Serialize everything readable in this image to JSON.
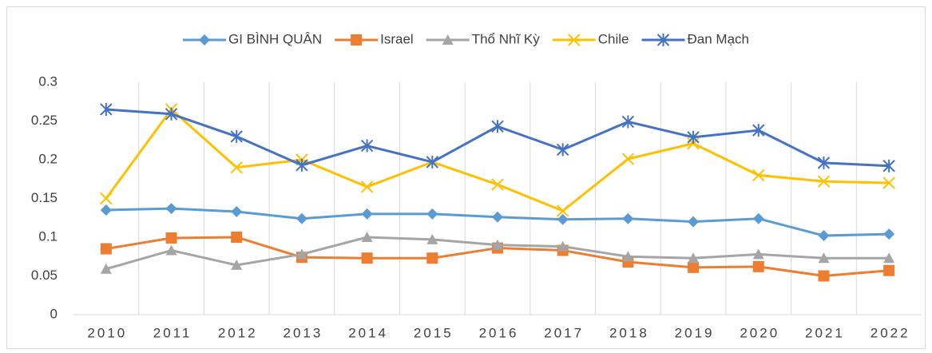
{
  "chart_data": {
    "type": "line",
    "categories": [
      "2010",
      "2011",
      "2012",
      "2013",
      "2014",
      "2015",
      "2016",
      "2017",
      "2018",
      "2019",
      "2020",
      "2021",
      "2022"
    ],
    "series": [
      {
        "name": "GI BÌNH QUÂN",
        "color": "#5B9BD5",
        "marker": "diamond",
        "values": [
          0.135,
          0.137,
          0.133,
          0.124,
          0.13,
          0.13,
          0.126,
          0.123,
          0.124,
          0.12,
          0.124,
          0.102,
          0.104
        ]
      },
      {
        "name": "Israel",
        "color": "#ED7D31",
        "marker": "square",
        "values": [
          0.085,
          0.099,
          0.1,
          0.074,
          0.073,
          0.073,
          0.086,
          0.083,
          0.068,
          0.061,
          0.062,
          0.05,
          0.057
        ]
      },
      {
        "name": "Thổ Nhĩ Kỳ",
        "color": "#A5A5A5",
        "marker": "triangle",
        "values": [
          0.059,
          0.083,
          0.064,
          0.078,
          0.1,
          0.097,
          0.09,
          0.088,
          0.075,
          0.073,
          0.078,
          0.073,
          0.073
        ]
      },
      {
        "name": "Chile",
        "color": "#FFC000",
        "marker": "x",
        "values": [
          0.15,
          0.265,
          0.19,
          0.2,
          0.165,
          0.197,
          0.168,
          0.134,
          0.201,
          0.221,
          0.18,
          0.172,
          0.17
        ]
      },
      {
        "name": "Đan Mạch",
        "color": "#4472C4",
        "marker": "star",
        "values": [
          0.265,
          0.259,
          0.23,
          0.193,
          0.218,
          0.197,
          0.243,
          0.213,
          0.249,
          0.229,
          0.238,
          0.196,
          0.192
        ]
      }
    ],
    "ylim": [
      0,
      0.3
    ],
    "yticks": [
      0,
      0.05,
      0.1,
      0.15,
      0.2,
      0.25,
      0.3
    ],
    "grid": "vertical",
    "legend": "top"
  }
}
